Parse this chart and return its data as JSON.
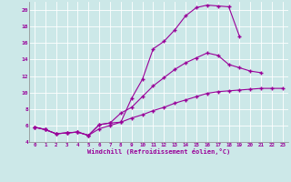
{
  "xlabel": "Windchill (Refroidissement éolien,°C)",
  "bg_color": "#cce8e8",
  "line_color": "#990099",
  "xlim": [
    -0.5,
    23.5
  ],
  "ylim": [
    4,
    21
  ],
  "xticks": [
    0,
    1,
    2,
    3,
    4,
    5,
    6,
    7,
    8,
    9,
    10,
    11,
    12,
    13,
    14,
    15,
    16,
    17,
    18,
    19,
    20,
    21,
    22,
    23
  ],
  "yticks": [
    4,
    6,
    8,
    10,
    12,
    14,
    16,
    18,
    20
  ],
  "line1_x": [
    0,
    1,
    2,
    3,
    4,
    5,
    6,
    7,
    8,
    9,
    10,
    11,
    12,
    13,
    14,
    15,
    16,
    17,
    18,
    19
  ],
  "line1_y": [
    5.8,
    5.5,
    5.0,
    5.1,
    5.2,
    4.8,
    6.1,
    6.3,
    6.4,
    9.3,
    11.6,
    15.3,
    16.2,
    17.6,
    19.3,
    20.3,
    20.6,
    20.5,
    20.4,
    16.8
  ],
  "line2_x": [
    0,
    1,
    2,
    3,
    4,
    5,
    6,
    7,
    8,
    9,
    10,
    11,
    12,
    13,
    14,
    15,
    16,
    17,
    18,
    19,
    20,
    21
  ],
  "line2_y": [
    5.8,
    5.5,
    5.0,
    5.1,
    5.2,
    4.8,
    6.1,
    6.3,
    7.5,
    8.2,
    9.5,
    10.8,
    11.8,
    12.8,
    13.6,
    14.2,
    14.8,
    14.5,
    13.4,
    13.0,
    12.6,
    12.4
  ],
  "line3_x": [
    0,
    1,
    2,
    3,
    4,
    5,
    6,
    7,
    8,
    9,
    10,
    11,
    12,
    13,
    14,
    15,
    16,
    17,
    18,
    19,
    20,
    21,
    22,
    23
  ],
  "line3_y": [
    5.8,
    5.5,
    5.0,
    5.1,
    5.2,
    4.8,
    5.6,
    6.0,
    6.4,
    6.9,
    7.3,
    7.8,
    8.2,
    8.7,
    9.1,
    9.5,
    9.9,
    10.1,
    10.2,
    10.3,
    10.4,
    10.5,
    10.5,
    10.5
  ]
}
